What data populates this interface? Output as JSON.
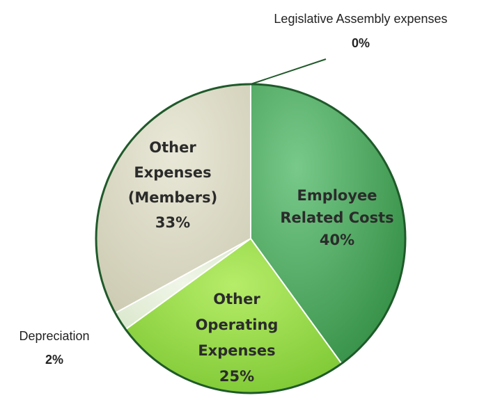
{
  "chart_data": {
    "type": "pie",
    "slices": [
      {
        "name": "Employee Related Costs",
        "value": 40,
        "label_lines": [
          "Employee",
          "Related Costs",
          "40%"
        ],
        "color": "#3f9a4d"
      },
      {
        "name": "Other Operating Expenses",
        "value": 25,
        "label_lines": [
          "Other",
          "Operating",
          "Expenses",
          "25%"
        ],
        "color": "#8cd43f"
      },
      {
        "name": "Depreciation",
        "value": 2,
        "pct_label": "2%",
        "color": "#dfead2"
      },
      {
        "name": "Other Expenses (Members)",
        "value": 33,
        "label_lines": [
          "Other",
          "Expenses",
          "(Members)",
          "33%"
        ],
        "color": "#d7d6c0"
      },
      {
        "name": "Legislative Assembly expenses",
        "value": 0,
        "pct_label": "0%",
        "color": "#ffffff"
      }
    ],
    "outside_labels": {
      "legislative": {
        "name": "Legislative Assembly expenses",
        "pct": "0%"
      },
      "depreciation": {
        "name": "Depreciation",
        "pct": "2%"
      }
    }
  }
}
